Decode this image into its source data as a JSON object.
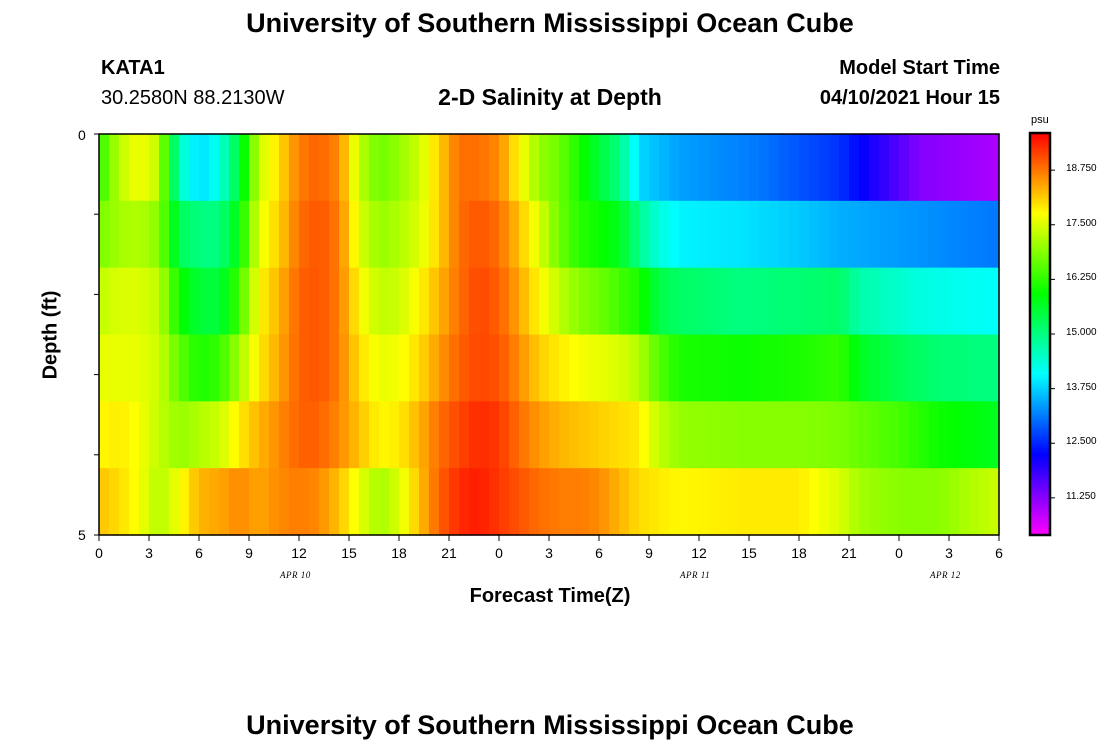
{
  "title": "University of Southern Mississippi Ocean Cube",
  "bottom_title": "University of Southern Mississippi Ocean Cube",
  "station": {
    "id": "KATA1",
    "coords": "30.2580N  88.2130W"
  },
  "plot_title": "2-D Salinity at Depth",
  "model_start": {
    "label": "Model Start Time",
    "value": "04/10/2021 Hour 15"
  },
  "chart_data": {
    "type": "heatmap",
    "title": "2-D Salinity at Depth",
    "xlabel": "Forecast Time(Z)",
    "ylabel": "Depth (ft)",
    "ylim": [
      0,
      5
    ],
    "y_tick_labels": [
      "0",
      "5"
    ],
    "x_tick_labels": [
      "0",
      "3",
      "6",
      "9",
      "12",
      "15",
      "18",
      "21",
      "0",
      "3",
      "6",
      "9",
      "12",
      "15",
      "18",
      "21",
      "0",
      "3",
      "6"
    ],
    "date_labels": [
      "APR 10",
      "APR 11",
      "APR 12"
    ],
    "colorbar": {
      "unit": "psu",
      "min": 10.4,
      "max": 19.6,
      "ticks": [
        "18.750",
        "17.500",
        "16.250",
        "15.000",
        "13.750",
        "12.500",
        "11.250"
      ],
      "tick_values": [
        18.75,
        17.5,
        16.25,
        15.0,
        13.75,
        12.5,
        11.25
      ]
    },
    "rows": [
      {
        "depth": "0-1 ft",
        "knots": [
          [
            0,
            16.2
          ],
          [
            1,
            17.3
          ],
          [
            2,
            17.7
          ],
          [
            3,
            17.3
          ],
          [
            4,
            14.5
          ],
          [
            5,
            13.8
          ],
          [
            6,
            14.3
          ],
          [
            7,
            15.5
          ],
          [
            8,
            17.4
          ],
          [
            9,
            18.0
          ],
          [
            10,
            18.7
          ],
          [
            11,
            18.9
          ],
          [
            12,
            18.6
          ],
          [
            13,
            17.3
          ],
          [
            14,
            16.7
          ],
          [
            15,
            17.0
          ],
          [
            16,
            17.4
          ],
          [
            17,
            18.1
          ],
          [
            18,
            18.8
          ],
          [
            19,
            18.8
          ],
          [
            20,
            18.6
          ],
          [
            21,
            17.8
          ],
          [
            22,
            17.0
          ],
          [
            23,
            16.7
          ],
          [
            24,
            16.1
          ],
          [
            25,
            15.5
          ],
          [
            26,
            15.0
          ],
          [
            27,
            13.8
          ],
          [
            29,
            13.4
          ],
          [
            33,
            13.1
          ],
          [
            37,
            12.6
          ],
          [
            41,
            11.3
          ],
          [
            45,
            11.0
          ]
        ]
      },
      {
        "depth": "1-2 ft",
        "knots": [
          [
            0,
            16.8
          ],
          [
            1,
            17.1
          ],
          [
            2,
            17.2
          ],
          [
            3,
            16.9
          ],
          [
            4,
            15.3
          ],
          [
            5,
            15.0
          ],
          [
            6,
            15.0
          ],
          [
            7,
            15.9
          ],
          [
            8,
            17.6
          ],
          [
            9,
            18.1
          ],
          [
            10,
            18.8
          ],
          [
            11,
            19.0
          ],
          [
            12,
            18.7
          ],
          [
            13,
            17.5
          ],
          [
            14,
            17.0
          ],
          [
            15,
            17.2
          ],
          [
            16,
            17.5
          ],
          [
            17,
            18.1
          ],
          [
            18,
            18.8
          ],
          [
            19,
            19.0
          ],
          [
            20,
            18.8
          ],
          [
            21,
            18.2
          ],
          [
            22,
            17.5
          ],
          [
            23,
            16.7
          ],
          [
            24,
            16.2
          ],
          [
            25,
            16.0
          ],
          [
            26,
            15.7
          ],
          [
            27,
            14.9
          ],
          [
            28,
            14.3
          ],
          [
            29,
            14.0
          ],
          [
            32,
            13.9
          ],
          [
            35,
            13.7
          ],
          [
            37,
            13.5
          ],
          [
            41,
            13.3
          ],
          [
            45,
            13.1
          ]
        ]
      },
      {
        "depth": "2-3 ft",
        "knots": [
          [
            0,
            17.3
          ],
          [
            1,
            17.5
          ],
          [
            2,
            17.5
          ],
          [
            3,
            17.3
          ],
          [
            4,
            16.0
          ],
          [
            5,
            15.5
          ],
          [
            6,
            15.5
          ],
          [
            7,
            16.4
          ],
          [
            8,
            17.8
          ],
          [
            9,
            18.3
          ],
          [
            10,
            18.9
          ],
          [
            11,
            19.0
          ],
          [
            12,
            18.7
          ],
          [
            13,
            17.8
          ],
          [
            14,
            17.3
          ],
          [
            15,
            17.4
          ],
          [
            16,
            17.8
          ],
          [
            17,
            18.3
          ],
          [
            18,
            18.8
          ],
          [
            19,
            19.1
          ],
          [
            20,
            18.9
          ],
          [
            21,
            18.4
          ],
          [
            22,
            17.8
          ],
          [
            23,
            17.3
          ],
          [
            24,
            16.9
          ],
          [
            25,
            16.7
          ],
          [
            26,
            16.4
          ],
          [
            27,
            16.1
          ],
          [
            28,
            15.4
          ],
          [
            29,
            15.2
          ],
          [
            32,
            15.0
          ],
          [
            35,
            15.1
          ],
          [
            37,
            15.2
          ],
          [
            38,
            14.7
          ],
          [
            41,
            14.3
          ],
          [
            45,
            14.1
          ]
        ]
      },
      {
        "depth": "3-4 ft",
        "knots": [
          [
            0,
            17.6
          ],
          [
            1,
            17.6
          ],
          [
            2,
            17.6
          ],
          [
            3,
            17.4
          ],
          [
            4,
            16.6
          ],
          [
            5,
            16.1
          ],
          [
            6,
            16.3
          ],
          [
            7,
            17.1
          ],
          [
            8,
            17.9
          ],
          [
            9,
            18.4
          ],
          [
            10,
            18.9
          ],
          [
            11,
            19.0
          ],
          [
            12,
            18.7
          ],
          [
            13,
            18.0
          ],
          [
            14,
            17.6
          ],
          [
            15,
            17.7
          ],
          [
            16,
            18.0
          ],
          [
            17,
            18.5
          ],
          [
            18,
            18.9
          ],
          [
            19,
            19.1
          ],
          [
            20,
            19.0
          ],
          [
            21,
            18.6
          ],
          [
            22,
            18.1
          ],
          [
            23,
            17.9
          ],
          [
            24,
            17.7
          ],
          [
            25,
            17.6
          ],
          [
            26,
            17.5
          ],
          [
            27,
            17.2
          ],
          [
            28,
            16.5
          ],
          [
            29,
            16.1
          ],
          [
            32,
            16.0
          ],
          [
            35,
            16.1
          ],
          [
            37,
            16.3
          ],
          [
            38,
            15.7
          ],
          [
            40,
            15.3
          ],
          [
            42,
            15.1
          ],
          [
            45,
            15.0
          ]
        ]
      },
      {
        "depth": "4-5 ft",
        "knots": [
          [
            0,
            17.8
          ],
          [
            1,
            17.9
          ],
          [
            2,
            17.7
          ],
          [
            3,
            17.3
          ],
          [
            4,
            17.0
          ],
          [
            5,
            17.2
          ],
          [
            6,
            17.4
          ],
          [
            7,
            17.9
          ],
          [
            8,
            18.3
          ],
          [
            9,
            18.6
          ],
          [
            10,
            18.9
          ],
          [
            11,
            18.9
          ],
          [
            12,
            18.6
          ],
          [
            13,
            18.2
          ],
          [
            14,
            17.8
          ],
          [
            15,
            17.9
          ],
          [
            16,
            18.3
          ],
          [
            17,
            18.8
          ],
          [
            18,
            19.1
          ],
          [
            19,
            19.3
          ],
          [
            20,
            19.2
          ],
          [
            21,
            18.8
          ],
          [
            22,
            18.5
          ],
          [
            23,
            18.3
          ],
          [
            24,
            18.2
          ],
          [
            25,
            18.1
          ],
          [
            26,
            18.0
          ],
          [
            27,
            17.9
          ],
          [
            28,
            17.3
          ],
          [
            29,
            17.0
          ],
          [
            32,
            16.9
          ],
          [
            35,
            16.9
          ],
          [
            37,
            16.8
          ],
          [
            40,
            16.4
          ],
          [
            42,
            16.0
          ],
          [
            45,
            15.7
          ]
        ]
      },
      {
        "depth": "5 ft",
        "knots": [
          [
            0,
            18.2
          ],
          [
            1,
            18.0
          ],
          [
            2,
            17.7
          ],
          [
            3,
            17.2
          ],
          [
            4,
            17.7
          ],
          [
            5,
            18.3
          ],
          [
            6,
            18.4
          ],
          [
            7,
            18.6
          ],
          [
            8,
            18.4
          ],
          [
            9,
            18.6
          ],
          [
            10,
            18.7
          ],
          [
            11,
            18.6
          ],
          [
            12,
            18.2
          ],
          [
            13,
            17.6
          ],
          [
            14,
            17.1
          ],
          [
            15,
            17.5
          ],
          [
            16,
            18.2
          ],
          [
            17,
            18.9
          ],
          [
            18,
            19.3
          ],
          [
            19,
            19.4
          ],
          [
            20,
            19.2
          ],
          [
            21,
            19.0
          ],
          [
            22,
            18.8
          ],
          [
            23,
            18.7
          ],
          [
            24,
            18.7
          ],
          [
            25,
            18.6
          ],
          [
            26,
            18.3
          ],
          [
            27,
            18.0
          ],
          [
            28,
            17.9
          ],
          [
            29,
            17.8
          ],
          [
            32,
            17.9
          ],
          [
            35,
            17.9
          ],
          [
            37,
            17.5
          ],
          [
            38,
            17.1
          ],
          [
            40,
            16.9
          ],
          [
            42,
            16.9
          ],
          [
            43,
            17.1
          ],
          [
            45,
            17.4
          ]
        ]
      }
    ]
  }
}
